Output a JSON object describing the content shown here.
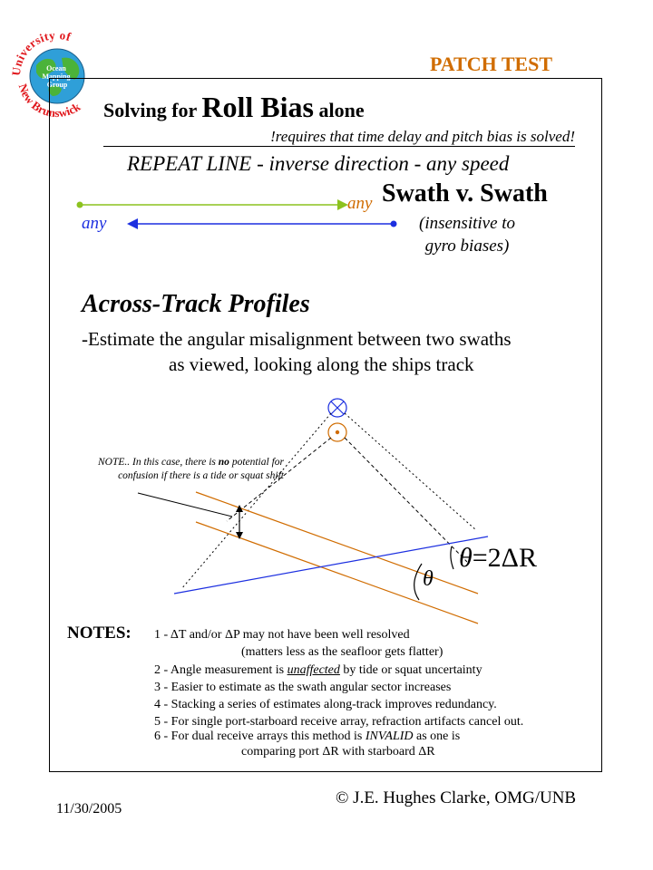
{
  "logo": {
    "ring_text": "University of New Brunswick",
    "inner_text": "Ocean Mapping Group"
  },
  "header": {
    "label": "PATCH TEST"
  },
  "title": {
    "prefix": "Solving for ",
    "main": "Roll Bias",
    "suffix": " alone",
    "requirement": "!requires that time delay and pitch bias is solved!"
  },
  "repeat_line": "REPEAT LINE - inverse direction - any speed",
  "diagram_top": {
    "any_forward": "any",
    "any_reverse": "any",
    "swath_label": "Swath v. Swath",
    "insensitive_line1": "(insensitive to",
    "insensitive_line2": "gyro biases)"
  },
  "across_track": {
    "heading": "Across-Track Profiles",
    "line1": "-Estimate the angular misalignment between two swaths",
    "line2": "as viewed, looking along the ships track"
  },
  "diagram_note": {
    "part1": "NOTE.. In this case, there is ",
    "bold": "no",
    "part2": " potential for",
    "line2": "confusion if there is a tide or squat shift"
  },
  "theta": {
    "symbol": "θ",
    "equation": "=2ΔR"
  },
  "notes": {
    "label": "NOTES:",
    "items": [
      "1 - ΔT and/or ΔP may not have been well resolved",
      "(matters less as the seafloor gets flatter)",
      "2 - Angle measurement is ",
      "unaffected",
      " by tide or squat uncertainty",
      "3 - Easier to estimate as the swath angular sector increases",
      "4 - Stacking a series of estimates along-track improves redundancy.",
      "5 - For single port-starboard receive array, refraction artifacts cancel out.",
      "6 - For dual receive arrays this method is ",
      "INVALID",
      " as one is",
      "comparing port ΔR with starboard ΔR"
    ]
  },
  "footer": {
    "date": "11/30/2005",
    "copyright": "© J.E. Hughes Clarke, OMG/UNB"
  },
  "colors": {
    "orange": "#d06c00",
    "blue": "#1c2fe0",
    "green": "#8cc21f",
    "globe_sea": "#2f9fd8",
    "globe_land": "#4bb33a",
    "ring_text": "#e0161b"
  }
}
